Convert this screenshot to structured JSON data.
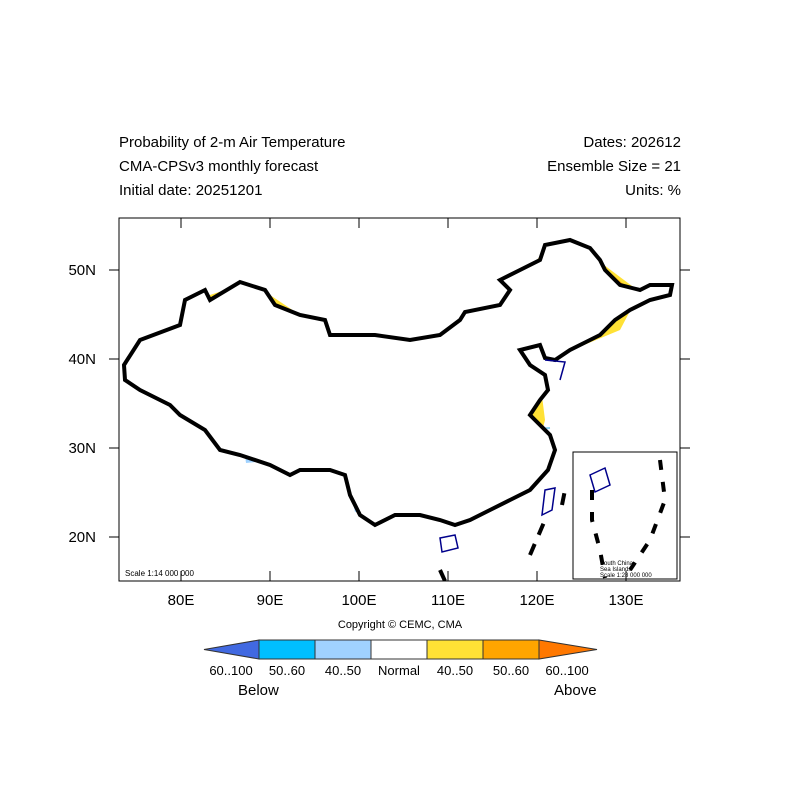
{
  "header": {
    "title": "Probability of 2-m Air Temperature",
    "model": "CMA-CPSv3 monthly forecast",
    "initial_date": "Initial date: 20251201",
    "dates": "Dates: 202612",
    "ensemble": "Ensemble Size = 21",
    "units": "Units: %"
  },
  "map": {
    "lon_ticks": [
      "80E",
      "90E",
      "100E",
      "110E",
      "120E",
      "130E"
    ],
    "lat_ticks": [
      "50N",
      "40N",
      "30N",
      "20N"
    ],
    "scale_label": "Scale 1:14 000 000",
    "inset": {
      "line1": "South China",
      "line2": "Sea Islands",
      "line3": "Scale 1:28 000 000"
    },
    "copyright": "Copyright © CEMC, CMA"
  },
  "legend": {
    "bins": [
      {
        "label": "60..100",
        "color": "#4169e1"
      },
      {
        "label": "50..60",
        "color": "#00bfff"
      },
      {
        "label": "40..50",
        "color": "#a0d2ff"
      },
      {
        "label": "Normal",
        "color": "#ffffff"
      },
      {
        "label": "40..50",
        "color": "#ffe135"
      },
      {
        "label": "50..60",
        "color": "#ffa500"
      },
      {
        "label": "60..100",
        "color": "#ff7800"
      }
    ],
    "below": "Below",
    "above": "Above"
  }
}
